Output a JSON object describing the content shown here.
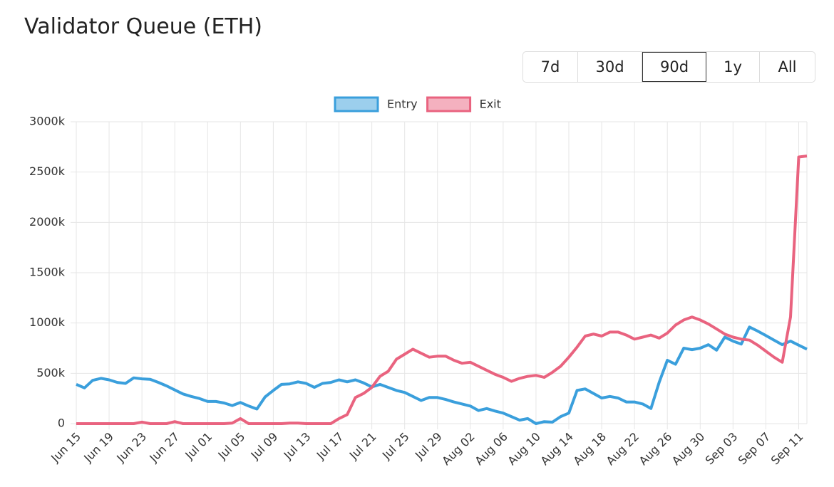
{
  "range_buttons": [
    "7d",
    "30d",
    "90d",
    "1y",
    "All"
  ],
  "selected_range": "90d",
  "chart_data": {
    "type": "line",
    "title": "Validator Queue (ETH)",
    "categories": [
      "Jun 15",
      null,
      null,
      null,
      "Jun 19",
      null,
      null,
      null,
      "Jun 23",
      null,
      null,
      null,
      "Jun 27",
      null,
      null,
      null,
      "Jul 01",
      null,
      null,
      null,
      "Jul 05",
      null,
      null,
      null,
      "Jul 09",
      null,
      null,
      null,
      "Jul 13",
      null,
      null,
      null,
      "Jul 17",
      null,
      null,
      null,
      "Jul 21",
      null,
      null,
      null,
      "Jul 25",
      null,
      null,
      null,
      "Jul 29",
      null,
      null,
      null,
      "Aug 02",
      null,
      null,
      null,
      "Aug 06",
      null,
      null,
      null,
      "Aug 10",
      null,
      null,
      null,
      "Aug 14",
      null,
      null,
      null,
      "Aug 18",
      null,
      null,
      null,
      "Aug 22",
      null,
      null,
      null,
      "Aug 26",
      null,
      null,
      null,
      "Aug 30",
      null,
      null,
      null,
      "Sep 03",
      null,
      null,
      null,
      "Sep 07",
      null,
      null,
      null,
      "Sep 11",
      null
    ],
    "series": [
      {
        "name": "Entry",
        "color": "#3a9fdc",
        "values": [
          390,
          355,
          430,
          450,
          435,
          410,
          400,
          455,
          445,
          440,
          410,
          375,
          335,
          295,
          270,
          250,
          220,
          220,
          205,
          180,
          210,
          175,
          145,
          265,
          330,
          390,
          395,
          415,
          400,
          360,
          400,
          410,
          435,
          415,
          435,
          405,
          365,
          390,
          360,
          330,
          310,
          270,
          230,
          260,
          260,
          240,
          215,
          195,
          175,
          130,
          150,
          125,
          105,
          70,
          35,
          50,
          0,
          20,
          15,
          70,
          105,
          330,
          345,
          300,
          255,
          270,
          255,
          215,
          215,
          195,
          150,
          410,
          630,
          590,
          750,
          735,
          750,
          785,
          730,
          860,
          820,
          790,
          960,
          920,
          875,
          830,
          785,
          820,
          780,
          740
        ]
      },
      {
        "name": "Exit",
        "color": "#e9637f",
        "values": [
          0,
          0,
          0,
          0,
          0,
          0,
          0,
          0,
          15,
          0,
          0,
          0,
          20,
          0,
          0,
          0,
          0,
          0,
          0,
          5,
          50,
          0,
          0,
          0,
          0,
          0,
          5,
          5,
          0,
          0,
          0,
          0,
          50,
          90,
          260,
          300,
          360,
          470,
          520,
          640,
          690,
          740,
          700,
          660,
          670,
          670,
          630,
          600,
          610,
          570,
          530,
          490,
          460,
          420,
          450,
          470,
          480,
          460,
          510,
          570,
          660,
          760,
          870,
          890,
          870,
          910,
          910,
          880,
          840,
          860,
          880,
          850,
          900,
          980,
          1030,
          1060,
          1030,
          990,
          940,
          890,
          860,
          840,
          830,
          780,
          720,
          660,
          610,
          1060,
          2650,
          2660
        ]
      }
    ],
    "ylim": [
      0,
      3000
    ],
    "yticks": [
      0,
      {
        "value": 500,
        "label": "500k"
      },
      {
        "value": 1000,
        "label": "1000k"
      },
      {
        "value": 1500,
        "label": "1500k"
      },
      {
        "value": 2000,
        "label": "2000k"
      },
      {
        "value": 2500,
        "label": "2500k"
      },
      {
        "value": 3000,
        "label": "3000k"
      }
    ],
    "grid": true,
    "legend": "top"
  }
}
